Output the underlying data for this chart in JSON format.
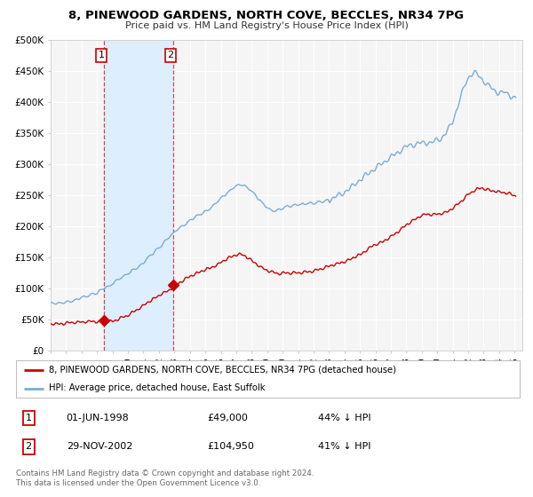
{
  "title": "8, PINEWOOD GARDENS, NORTH COVE, BECCLES, NR34 7PG",
  "subtitle": "Price paid vs. HM Land Registry's House Price Index (HPI)",
  "ylim": [
    0,
    500000
  ],
  "xlim": [
    1995.0,
    2025.5
  ],
  "yticks": [
    0,
    50000,
    100000,
    150000,
    200000,
    250000,
    300000,
    350000,
    400000,
    450000,
    500000
  ],
  "ytick_labels": [
    "£0",
    "£50K",
    "£100K",
    "£150K",
    "£200K",
    "£250K",
    "£300K",
    "£350K",
    "£400K",
    "£450K",
    "£500K"
  ],
  "xticks": [
    1995,
    1996,
    1997,
    1998,
    1999,
    2000,
    2001,
    2002,
    2003,
    2004,
    2005,
    2006,
    2007,
    2008,
    2009,
    2010,
    2011,
    2012,
    2013,
    2014,
    2015,
    2016,
    2017,
    2018,
    2019,
    2020,
    2021,
    2022,
    2023,
    2024,
    2025
  ],
  "sale1_x": 1998.42,
  "sale1_y": 49000,
  "sale2_x": 2002.91,
  "sale2_y": 104950,
  "vline1_x": 1998.42,
  "vline2_x": 2002.91,
  "shade_start": 1998.42,
  "shade_end": 2002.91,
  "red_line_color": "#cc0000",
  "blue_line_color": "#7aadd4",
  "shade_color": "#ddeeff",
  "marker_color": "#cc0000",
  "legend1_label": "8, PINEWOOD GARDENS, NORTH COVE, BECCLES, NR34 7PG (detached house)",
  "legend2_label": "HPI: Average price, detached house, East Suffolk",
  "table_row1": [
    "1",
    "01-JUN-1998",
    "£49,000",
    "44% ↓ HPI"
  ],
  "table_row2": [
    "2",
    "29-NOV-2002",
    "£104,950",
    "41% ↓ HPI"
  ],
  "footer1": "Contains HM Land Registry data © Crown copyright and database right 2024.",
  "footer2": "This data is licensed under the Open Government Licence v3.0.",
  "bg_color": "#ffffff",
  "plot_bg_color": "#f5f5f5"
}
